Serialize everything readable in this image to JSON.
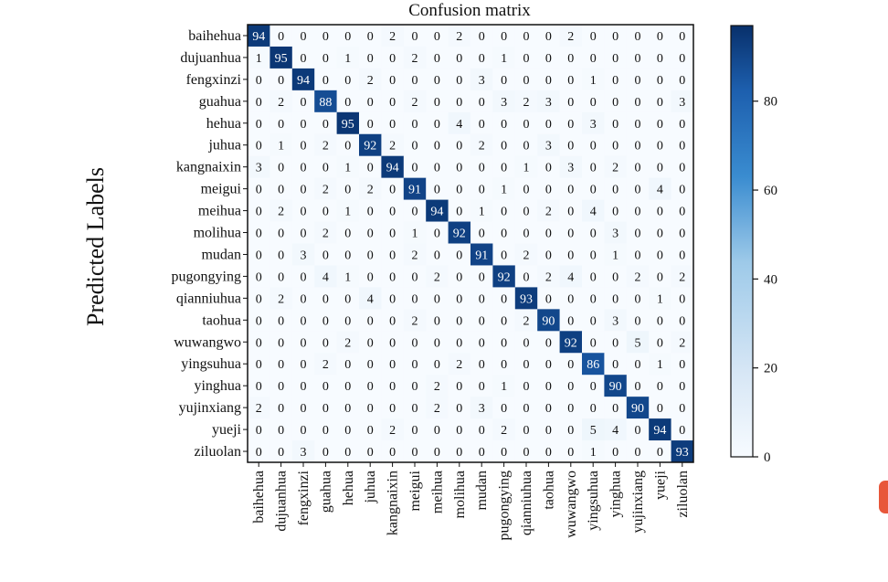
{
  "chart_data": {
    "type": "heatmap",
    "title": "Confusion matrix",
    "ylabel": "Predicted Labels",
    "xlabel": "",
    "labels": [
      "baihehua",
      "dujuanhua",
      "fengxinzi",
      "guahua",
      "hehua",
      "juhua",
      "kangnaixin",
      "meigui",
      "meihua",
      "molihua",
      "mudan",
      "pugongying",
      "qianniuhua",
      "taohua",
      "wuwangwo",
      "yingsuhua",
      "yinghua",
      "yujinxiang",
      "yueji",
      "ziluolan"
    ],
    "matrix": [
      [
        94,
        0,
        0,
        0,
        0,
        0,
        2,
        0,
        0,
        2,
        0,
        0,
        0,
        0,
        2,
        0,
        0,
        0,
        0,
        0
      ],
      [
        1,
        95,
        0,
        0,
        1,
        0,
        0,
        2,
        0,
        0,
        0,
        1,
        0,
        0,
        0,
        0,
        0,
        0,
        0,
        0
      ],
      [
        0,
        0,
        94,
        0,
        0,
        2,
        0,
        0,
        0,
        0,
        3,
        0,
        0,
        0,
        0,
        1,
        0,
        0,
        0,
        0
      ],
      [
        0,
        2,
        0,
        88,
        0,
        0,
        0,
        2,
        0,
        0,
        0,
        3,
        2,
        3,
        0,
        0,
        0,
        0,
        0,
        3
      ],
      [
        0,
        0,
        0,
        0,
        95,
        0,
        0,
        0,
        0,
        4,
        0,
        0,
        0,
        0,
        0,
        3,
        0,
        0,
        0,
        0
      ],
      [
        0,
        1,
        0,
        2,
        0,
        92,
        2,
        0,
        0,
        0,
        2,
        0,
        0,
        3,
        0,
        0,
        0,
        0,
        0,
        0
      ],
      [
        3,
        0,
        0,
        0,
        1,
        0,
        94,
        0,
        0,
        0,
        0,
        0,
        1,
        0,
        3,
        0,
        2,
        0,
        0,
        0
      ],
      [
        0,
        0,
        0,
        2,
        0,
        2,
        0,
        91,
        0,
        0,
        0,
        1,
        0,
        0,
        0,
        0,
        0,
        0,
        4,
        0
      ],
      [
        0,
        2,
        0,
        0,
        1,
        0,
        0,
        0,
        94,
        0,
        1,
        0,
        0,
        2,
        0,
        4,
        0,
        0,
        0,
        0
      ],
      [
        0,
        0,
        0,
        2,
        0,
        0,
        0,
        1,
        0,
        92,
        0,
        0,
        0,
        0,
        0,
        0,
        3,
        0,
        0,
        0
      ],
      [
        0,
        0,
        3,
        0,
        0,
        0,
        0,
        2,
        0,
        0,
        91,
        0,
        2,
        0,
        0,
        0,
        1,
        0,
        0,
        0
      ],
      [
        0,
        0,
        0,
        4,
        1,
        0,
        0,
        0,
        2,
        0,
        0,
        92,
        0,
        2,
        4,
        0,
        0,
        2,
        0,
        2
      ],
      [
        0,
        2,
        0,
        0,
        0,
        4,
        0,
        0,
        0,
        0,
        0,
        0,
        93,
        0,
        0,
        0,
        0,
        0,
        1,
        0
      ],
      [
        0,
        0,
        0,
        0,
        0,
        0,
        0,
        2,
        0,
        0,
        0,
        0,
        2,
        90,
        0,
        0,
        3,
        0,
        0,
        0
      ],
      [
        0,
        0,
        0,
        0,
        2,
        0,
        0,
        0,
        0,
        0,
        0,
        0,
        0,
        0,
        92,
        0,
        0,
        5,
        0,
        2
      ],
      [
        0,
        0,
        0,
        2,
        0,
        0,
        0,
        0,
        0,
        2,
        0,
        0,
        0,
        0,
        0,
        86,
        0,
        0,
        1,
        0
      ],
      [
        0,
        0,
        0,
        0,
        0,
        0,
        0,
        0,
        2,
        0,
        0,
        1,
        0,
        0,
        0,
        0,
        90,
        0,
        0,
        0
      ],
      [
        2,
        0,
        0,
        0,
        0,
        0,
        0,
        0,
        2,
        0,
        3,
        0,
        0,
        0,
        0,
        0,
        0,
        90,
        0,
        0
      ],
      [
        0,
        0,
        0,
        0,
        0,
        0,
        2,
        0,
        0,
        0,
        0,
        2,
        0,
        0,
        0,
        5,
        4,
        0,
        94,
        0
      ],
      [
        0,
        0,
        3,
        0,
        0,
        0,
        0,
        0,
        0,
        0,
        0,
        0,
        0,
        0,
        0,
        1,
        0,
        0,
        0,
        93
      ]
    ],
    "colorbar": {
      "min": 0,
      "max": 97,
      "ticks": [
        0,
        20,
        40,
        60,
        80
      ]
    },
    "colors": {
      "low": "#f7fbff",
      "mid": "#3a8cd0",
      "high": "#08306b"
    }
  }
}
